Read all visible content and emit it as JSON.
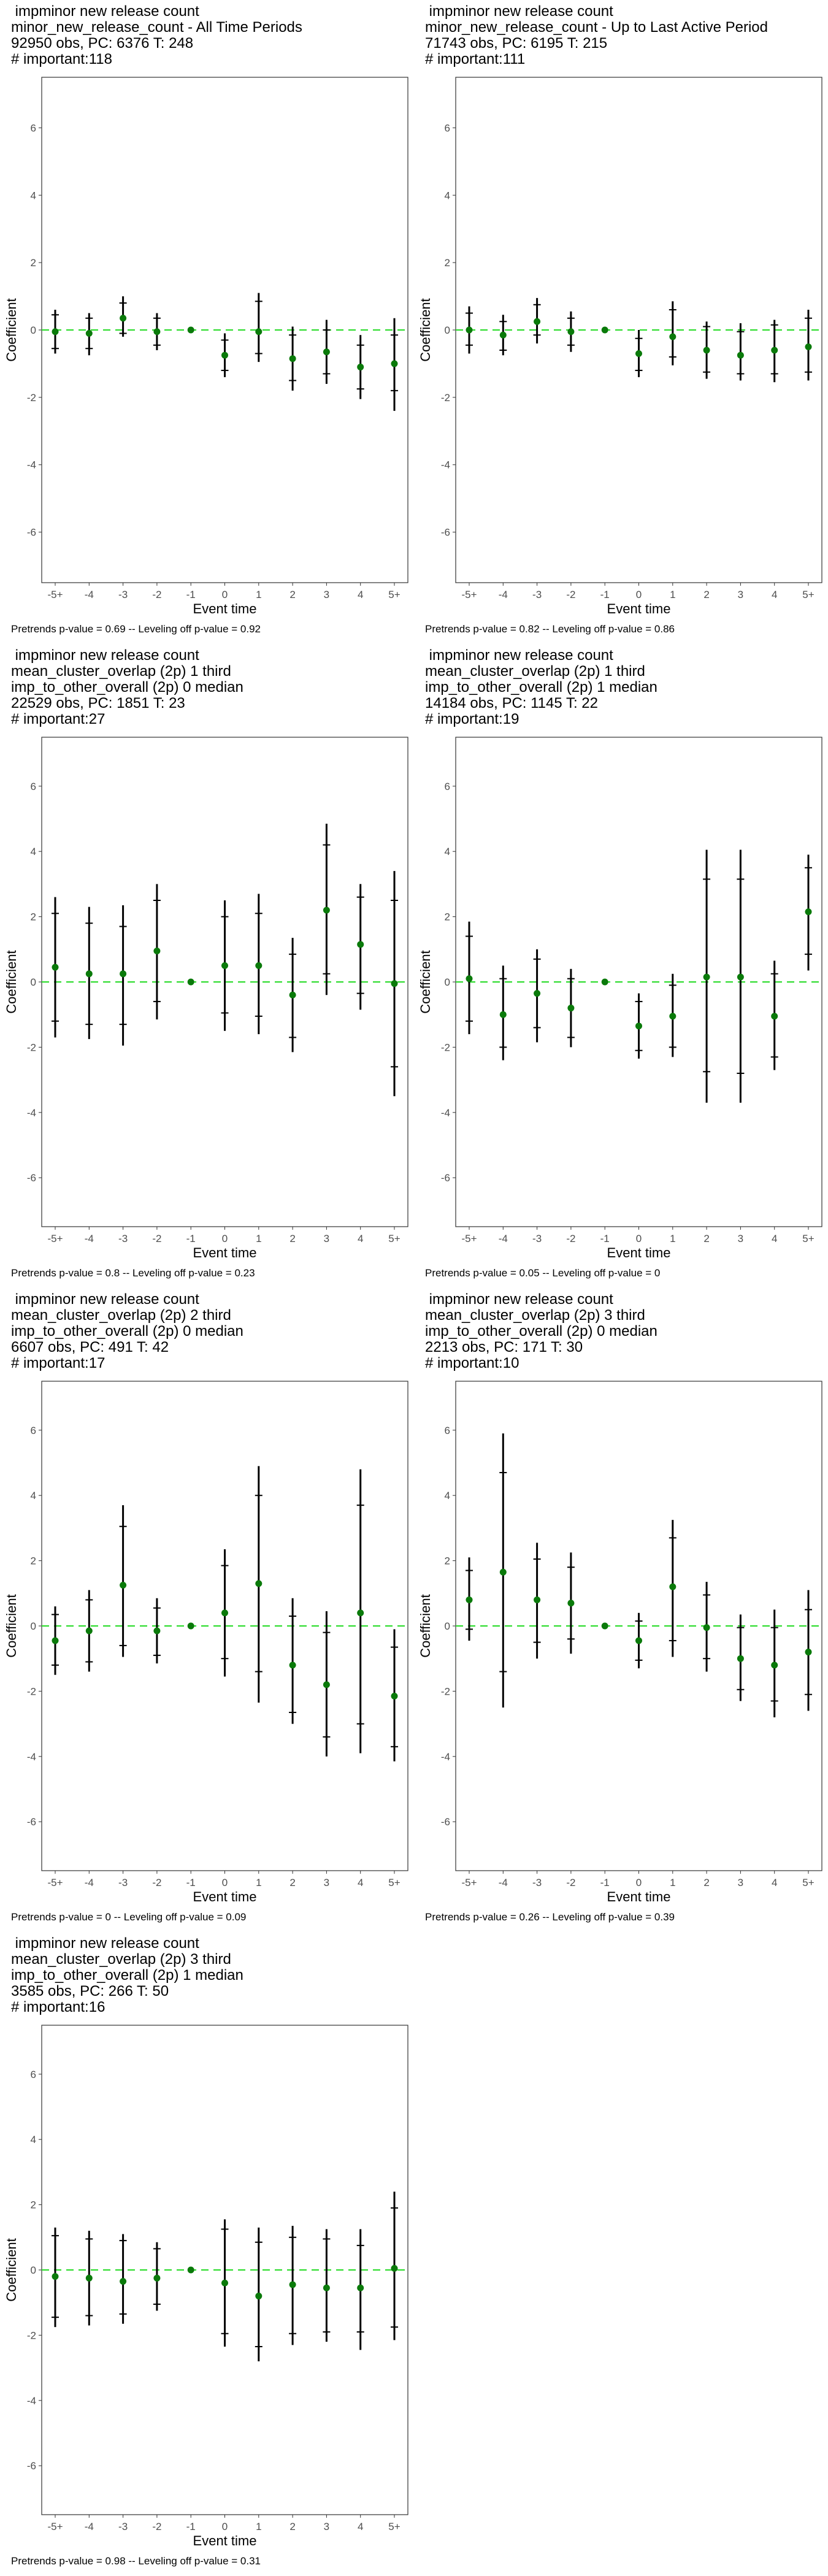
{
  "chart_data": [
    {
      "type": "scatter",
      "title_lines": [
        " impminor new release count",
        "minor_new_release_count - All Time Periods",
        "92950 obs, PC: 6376 T: 248",
        "# important:118"
      ],
      "xlabel": "Event time",
      "ylabel": "Coefficient",
      "categories": [
        "-5+",
        "-4",
        "-3",
        "-2",
        "-1",
        "0",
        "1",
        "2",
        "3",
        "4",
        "5+"
      ],
      "ylim": [
        -7.5,
        7.5
      ],
      "yticks": [
        -6,
        -4,
        -2,
        0,
        2,
        4,
        6
      ],
      "estimates": [
        -0.05,
        -0.1,
        0.35,
        -0.05,
        0.0,
        -0.75,
        -0.05,
        -0.85,
        -0.65,
        -1.1,
        -1.0
      ],
      "ci90": [
        [
          -0.55,
          0.45
        ],
        [
          -0.55,
          0.35
        ],
        [
          -0.1,
          0.8
        ],
        [
          -0.45,
          0.35
        ],
        [
          0,
          0
        ],
        [
          -1.2,
          -0.3
        ],
        [
          -0.7,
          0.85
        ],
        [
          -1.5,
          -0.15
        ],
        [
          -1.3,
          0.0
        ],
        [
          -1.75,
          -0.45
        ],
        [
          -1.8,
          -0.15
        ]
      ],
      "ci95": [
        [
          -0.7,
          0.6
        ],
        [
          -0.75,
          0.5
        ],
        [
          -0.2,
          1.0
        ],
        [
          -0.6,
          0.5
        ],
        [
          0,
          0
        ],
        [
          -1.4,
          -0.1
        ],
        [
          -0.95,
          1.1
        ],
        [
          -1.8,
          0.1
        ],
        [
          -1.6,
          0.3
        ],
        [
          -2.05,
          -0.15
        ],
        [
          -2.4,
          0.35
        ]
      ],
      "footer": "Pretrends p-value = 0.69 -- Leveling off p-value = 0.92"
    },
    {
      "type": "scatter",
      "title_lines": [
        " impminor new release count",
        "minor_new_release_count - Up to Last Active Period",
        "71743 obs, PC: 6195 T: 215",
        "# important:111"
      ],
      "xlabel": "Event time",
      "ylabel": "Coefficient",
      "categories": [
        "-5+",
        "-4",
        "-3",
        "-2",
        "-1",
        "0",
        "1",
        "2",
        "3",
        "4",
        "5+"
      ],
      "ylim": [
        -7.5,
        7.5
      ],
      "yticks": [
        -6,
        -4,
        -2,
        0,
        2,
        4,
        6
      ],
      "estimates": [
        0.0,
        -0.15,
        0.25,
        -0.05,
        0.0,
        -0.7,
        -0.2,
        -0.6,
        -0.75,
        -0.6,
        -0.5
      ],
      "ci90": [
        [
          -0.45,
          0.5
        ],
        [
          -0.6,
          0.25
        ],
        [
          -0.15,
          0.75
        ],
        [
          -0.45,
          0.35
        ],
        [
          0,
          0
        ],
        [
          -1.2,
          -0.25
        ],
        [
          -0.8,
          0.6
        ],
        [
          -1.25,
          0.1
        ],
        [
          -1.3,
          -0.05
        ],
        [
          -1.3,
          0.15
        ],
        [
          -1.25,
          0.35
        ]
      ],
      "ci95": [
        [
          -0.7,
          0.7
        ],
        [
          -0.75,
          0.45
        ],
        [
          -0.4,
          0.95
        ],
        [
          -0.65,
          0.55
        ],
        [
          0,
          0
        ],
        [
          -1.4,
          0.0
        ],
        [
          -1.05,
          0.85
        ],
        [
          -1.45,
          0.25
        ],
        [
          -1.5,
          0.2
        ],
        [
          -1.55,
          0.3
        ],
        [
          -1.5,
          0.6
        ]
      ],
      "footer": "Pretrends p-value = 0.82 -- Leveling off p-value = 0.86"
    },
    {
      "type": "scatter",
      "title_lines": [
        " impminor new release count",
        "mean_cluster_overlap (2p) 1 third",
        "imp_to_other_overall (2p) 0 median",
        "22529 obs, PC: 1851 T: 23",
        "# important:27"
      ],
      "xlabel": "Event time",
      "ylabel": "Coefficient",
      "categories": [
        "-5+",
        "-4",
        "-3",
        "-2",
        "-1",
        "0",
        "1",
        "2",
        "3",
        "4",
        "5+"
      ],
      "ylim": [
        -7.5,
        7.5
      ],
      "yticks": [
        -6,
        -4,
        -2,
        0,
        2,
        4,
        6
      ],
      "estimates": [
        0.45,
        0.25,
        0.25,
        0.95,
        0.0,
        0.5,
        0.5,
        -0.4,
        2.2,
        1.15,
        -0.05
      ],
      "ci90": [
        [
          -1.2,
          2.1
        ],
        [
          -1.3,
          1.8
        ],
        [
          -1.3,
          1.7
        ],
        [
          -0.6,
          2.5
        ],
        [
          0,
          0
        ],
        [
          -0.95,
          2.0
        ],
        [
          -1.05,
          2.1
        ],
        [
          -1.7,
          0.85
        ],
        [
          0.25,
          4.2
        ],
        [
          -0.35,
          2.6
        ],
        [
          -2.6,
          2.5
        ]
      ],
      "ci95": [
        [
          -1.7,
          2.6
        ],
        [
          -1.75,
          2.3
        ],
        [
          -1.95,
          2.35
        ],
        [
          -1.15,
          3.0
        ],
        [
          0,
          0
        ],
        [
          -1.5,
          2.5
        ],
        [
          -1.6,
          2.7
        ],
        [
          -2.15,
          1.35
        ],
        [
          -0.4,
          4.85
        ],
        [
          -0.85,
          3.0
        ],
        [
          -3.5,
          3.4
        ]
      ],
      "footer": "Pretrends p-value = 0.8 -- Leveling off p-value = 0.23"
    },
    {
      "type": "scatter",
      "title_lines": [
        " impminor new release count",
        "mean_cluster_overlap (2p) 1 third",
        "imp_to_other_overall (2p) 1 median",
        "14184 obs, PC: 1145 T: 22",
        "# important:19"
      ],
      "xlabel": "Event time",
      "ylabel": "Coefficient",
      "categories": [
        "-5+",
        "-4",
        "-3",
        "-2",
        "-1",
        "0",
        "1",
        "2",
        "3",
        "4",
        "5+"
      ],
      "ylim": [
        -7.5,
        7.5
      ],
      "yticks": [
        -6,
        -4,
        -2,
        0,
        2,
        4,
        6
      ],
      "estimates": [
        0.1,
        -1.0,
        -0.35,
        -0.8,
        0.0,
        -1.35,
        -1.05,
        0.15,
        0.15,
        -1.05,
        2.15
      ],
      "ci90": [
        [
          -1.2,
          1.4
        ],
        [
          -2.0,
          0.1
        ],
        [
          -1.4,
          0.7
        ],
        [
          -1.7,
          0.1
        ],
        [
          0,
          0
        ],
        [
          -2.1,
          -0.6
        ],
        [
          -2.0,
          -0.1
        ],
        [
          -2.75,
          3.15
        ],
        [
          -2.8,
          3.15
        ],
        [
          -2.3,
          0.25
        ],
        [
          0.85,
          3.5
        ]
      ],
      "ci95": [
        [
          -1.6,
          1.85
        ],
        [
          -2.4,
          0.5
        ],
        [
          -1.85,
          1.0
        ],
        [
          -2.0,
          0.4
        ],
        [
          0,
          0
        ],
        [
          -2.35,
          -0.35
        ],
        [
          -2.3,
          0.25
        ],
        [
          -3.7,
          4.05
        ],
        [
          -3.7,
          4.05
        ],
        [
          -2.7,
          0.65
        ],
        [
          0.35,
          3.9
        ]
      ],
      "footer": "Pretrends p-value = 0.05 -- Leveling off p-value = 0"
    },
    {
      "type": "scatter",
      "title_lines": [
        " impminor new release count",
        "mean_cluster_overlap (2p) 2 third",
        "imp_to_other_overall (2p) 0 median",
        "6607 obs, PC: 491 T: 42",
        "# important:17"
      ],
      "xlabel": "Event time",
      "ylabel": "Coefficient",
      "categories": [
        "-5+",
        "-4",
        "-3",
        "-2",
        "-1",
        "0",
        "1",
        "2",
        "3",
        "4",
        "5+"
      ],
      "ylim": [
        -7.5,
        7.5
      ],
      "yticks": [
        -6,
        -4,
        -2,
        0,
        2,
        4,
        6
      ],
      "estimates": [
        -0.45,
        -0.15,
        1.25,
        -0.15,
        0.0,
        0.4,
        1.3,
        -1.2,
        -1.8,
        0.4,
        -2.15
      ],
      "ci90": [
        [
          -1.2,
          0.35
        ],
        [
          -1.1,
          0.8
        ],
        [
          -0.6,
          3.05
        ],
        [
          -0.9,
          0.55
        ],
        [
          0,
          0
        ],
        [
          -1.0,
          1.85
        ],
        [
          -1.4,
          4.0
        ],
        [
          -2.65,
          0.3
        ],
        [
          -3.4,
          -0.2
        ],
        [
          -3.0,
          3.7
        ],
        [
          -3.7,
          -0.65
        ]
      ],
      "ci95": [
        [
          -1.5,
          0.6
        ],
        [
          -1.4,
          1.1
        ],
        [
          -0.95,
          3.7
        ],
        [
          -1.15,
          0.85
        ],
        [
          0,
          0
        ],
        [
          -1.55,
          2.35
        ],
        [
          -2.35,
          4.9
        ],
        [
          -3.0,
          0.85
        ],
        [
          -4.0,
          0.45
        ],
        [
          -3.9,
          4.8
        ],
        [
          -4.15,
          -0.1
        ]
      ],
      "footer": "Pretrends p-value = 0 -- Leveling off p-value = 0.09"
    },
    {
      "type": "scatter",
      "title_lines": [
        " impminor new release count",
        "mean_cluster_overlap (2p) 3 third",
        "imp_to_other_overall (2p) 0 median",
        "2213 obs, PC: 171 T: 30",
        "# important:10"
      ],
      "xlabel": "Event time",
      "ylabel": "Coefficient",
      "categories": [
        "-5+",
        "-4",
        "-3",
        "-2",
        "-1",
        "0",
        "1",
        "2",
        "3",
        "4",
        "5+"
      ],
      "ylim": [
        -7.5,
        7.5
      ],
      "yticks": [
        -6,
        -4,
        -2,
        0,
        2,
        4,
        6
      ],
      "estimates": [
        0.8,
        1.65,
        0.8,
        0.7,
        0.0,
        -0.45,
        1.2,
        -0.05,
        -1.0,
        -1.2,
        -0.8
      ],
      "ci90": [
        [
          -0.1,
          1.7
        ],
        [
          -1.4,
          4.7
        ],
        [
          -0.5,
          2.05
        ],
        [
          -0.4,
          1.8
        ],
        [
          0,
          0
        ],
        [
          -1.05,
          0.15
        ],
        [
          -0.45,
          2.7
        ],
        [
          -1.0,
          0.95
        ],
        [
          -1.95,
          -0.05
        ],
        [
          -2.3,
          -0.05
        ],
        [
          -2.1,
          0.5
        ]
      ],
      "ci95": [
        [
          -0.45,
          2.1
        ],
        [
          -2.5,
          5.9
        ],
        [
          -1.0,
          2.55
        ],
        [
          -0.85,
          2.25
        ],
        [
          0,
          0
        ],
        [
          -1.3,
          0.4
        ],
        [
          -0.95,
          3.25
        ],
        [
          -1.4,
          1.35
        ],
        [
          -2.3,
          0.35
        ],
        [
          -2.8,
          0.5
        ],
        [
          -2.6,
          1.1
        ]
      ],
      "footer": "Pretrends p-value = 0.26 -- Leveling off p-value = 0.39"
    },
    {
      "type": "scatter",
      "title_lines": [
        " impminor new release count",
        "mean_cluster_overlap (2p) 3 third",
        "imp_to_other_overall (2p) 1 median",
        "3585 obs, PC: 266 T: 50",
        "# important:16"
      ],
      "xlabel": "Event time",
      "ylabel": "Coefficient",
      "categories": [
        "-5+",
        "-4",
        "-3",
        "-2",
        "-1",
        "0",
        "1",
        "2",
        "3",
        "4",
        "5+"
      ],
      "ylim": [
        -7.5,
        7.5
      ],
      "yticks": [
        -6,
        -4,
        -2,
        0,
        2,
        4,
        6
      ],
      "estimates": [
        -0.2,
        -0.25,
        -0.35,
        -0.25,
        0.0,
        -0.4,
        -0.8,
        -0.45,
        -0.55,
        -0.55,
        0.05
      ],
      "ci90": [
        [
          -1.45,
          1.05
        ],
        [
          -1.4,
          0.95
        ],
        [
          -1.35,
          0.9
        ],
        [
          -1.05,
          0.65
        ],
        [
          0,
          0
        ],
        [
          -1.95,
          1.25
        ],
        [
          -2.35,
          0.85
        ],
        [
          -1.95,
          1.0
        ],
        [
          -1.9,
          0.95
        ],
        [
          -1.9,
          0.75
        ],
        [
          -1.75,
          1.9
        ]
      ],
      "ci95": [
        [
          -1.75,
          1.3
        ],
        [
          -1.7,
          1.2
        ],
        [
          -1.65,
          1.1
        ],
        [
          -1.25,
          0.85
        ],
        [
          0,
          0
        ],
        [
          -2.35,
          1.55
        ],
        [
          -2.8,
          1.3
        ],
        [
          -2.3,
          1.35
        ],
        [
          -2.2,
          1.25
        ],
        [
          -2.45,
          1.25
        ],
        [
          -2.15,
          2.4
        ]
      ],
      "footer": "Pretrends p-value = 0.98 -- Leveling off p-value = 0.31"
    }
  ],
  "colors": {
    "zero_line": "#33dd33",
    "point": "#0a7a0a",
    "bar": "#000000",
    "tick_text": "#4d4d4d",
    "frame": "#333333"
  }
}
